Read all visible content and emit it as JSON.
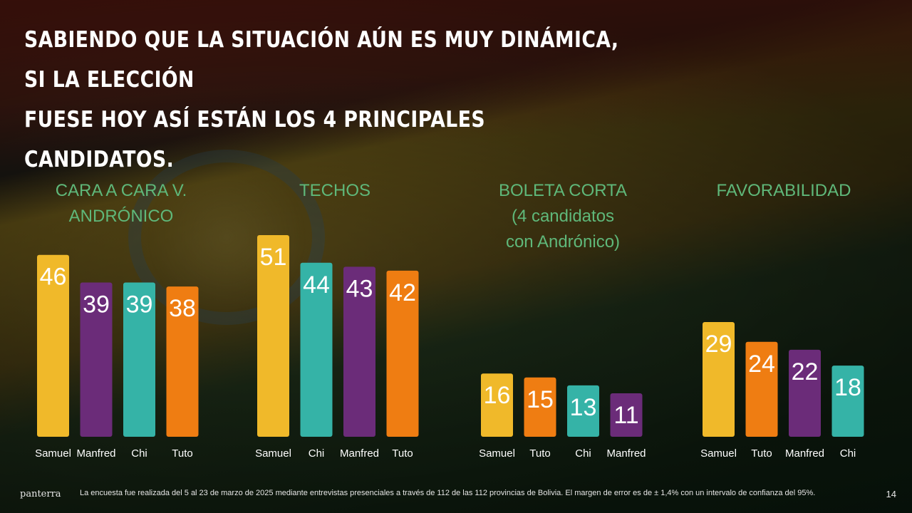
{
  "title": "Sabiendo que la situación aún es muy dinámica, si la elección\nfuese hoy así están los 4 principales candidatos.",
  "colors": {
    "Samuel": "#f0b92a",
    "Manfred": "#6b2c79",
    "Chi": "#35b3a7",
    "Tuto": "#ef7d12",
    "chart_title": "#5fb87a"
  },
  "chart_data": [
    {
      "type": "bar",
      "title": "CARA A CARA V.\nANDRÓNICO",
      "categories": [
        "Samuel",
        "Manfred",
        "Chi",
        "Tuto"
      ],
      "values": [
        46,
        39,
        39,
        38
      ]
    },
    {
      "type": "bar",
      "title": "TECHOS",
      "categories": [
        "Samuel",
        "Chi",
        "Manfred",
        "Tuto"
      ],
      "values": [
        51,
        44,
        43,
        42
      ]
    },
    {
      "type": "bar",
      "title": "BOLETA CORTA\n(4 candidatos\ncon Andrónico)",
      "categories": [
        "Samuel",
        "Tuto",
        "Chi",
        "Manfred"
      ],
      "values": [
        16,
        15,
        13,
        11
      ]
    },
    {
      "type": "bar",
      "title": "FAVORABILIDAD",
      "categories": [
        "Samuel",
        "Tuto",
        "Manfred",
        "Chi"
      ],
      "values": [
        29,
        24,
        22,
        18
      ]
    }
  ],
  "footer": {
    "logo": "panterra",
    "note": "La encuesta fue realizada del 5 al 23 de marzo de 2025 mediante entrevistas presenciales a través de 112 de las 112 provincias de Bolivia. El margen de error es de ± 1,4% con un intervalo de confianza del 95%.",
    "page_number": "14"
  }
}
